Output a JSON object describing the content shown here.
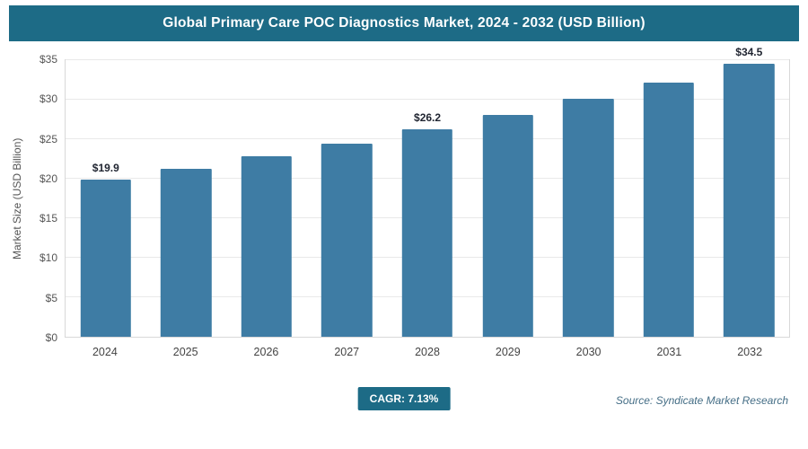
{
  "chart_data": {
    "type": "bar",
    "title": "Global Primary Care POC Diagnostics Market, 2024 - 2032 (USD Billion)",
    "categories": [
      "2024",
      "2025",
      "2026",
      "2027",
      "2028",
      "2029",
      "2030",
      "2031",
      "2032"
    ],
    "values": [
      19.9,
      21.3,
      22.8,
      24.4,
      26.2,
      28.1,
      30.1,
      32.2,
      34.5
    ],
    "point_labels": [
      "$19.9",
      "",
      "",
      "",
      "$26.2",
      "",
      "",
      "",
      "$34.5"
    ],
    "ylabel": "Market Size (USD Billion)",
    "xlabel": "",
    "ylim": [
      0,
      35
    ],
    "yticks": [
      "$0",
      "$5",
      "$10",
      "$15",
      "$20",
      "$25",
      "$30",
      "$35"
    ],
    "grid": true,
    "legend": false
  },
  "footer": {
    "cagr": "CAGR: 7.13%",
    "source": "Source: Syndicate Market Research"
  },
  "colors": {
    "header_bg": "#1d6b86",
    "bar": "#3e7ca4",
    "source_text": "#456e86"
  }
}
